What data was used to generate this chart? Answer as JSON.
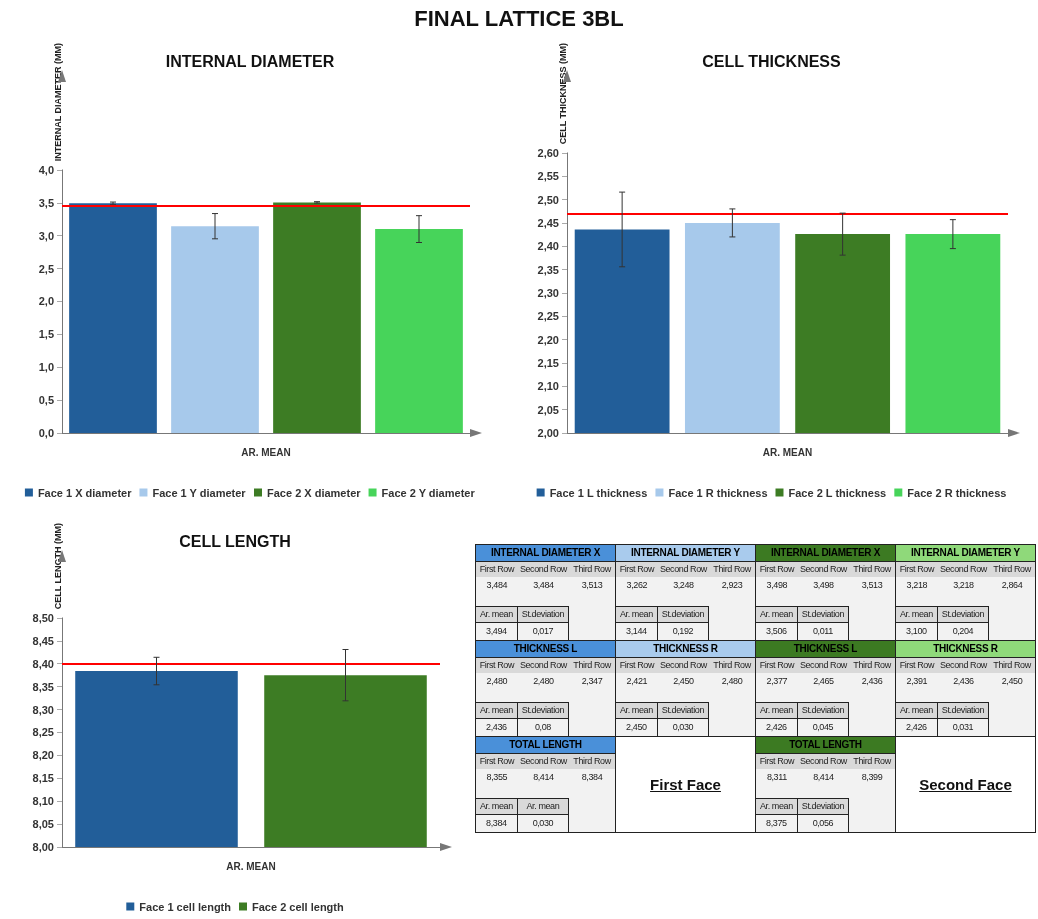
{
  "chart_data": [
    {
      "type": "bar",
      "title": "FINAL LATTICE 3BL",
      "subtitle": "INTERNAL DIAMETER",
      "ylabel": "INTERNAL DIAMETER (MM)",
      "xlabel": "AR. MEAN",
      "categories": [
        null
      ],
      "series": [
        {
          "name": "Face 1 X diameter",
          "color": "#225e99",
          "values": [
            3.494
          ],
          "errors": [
            0.017
          ]
        },
        {
          "name": "Face 1 Y diameter",
          "color": "#a7c9eb",
          "values": [
            3.144
          ],
          "errors": [
            0.192
          ]
        },
        {
          "name": "Face 2 X diameter",
          "color": "#3d7c24",
          "values": [
            3.506
          ],
          "errors": [
            0.011
          ]
        },
        {
          "name": "Face 2 Y diameter",
          "color": "#47d45a",
          "values": [
            3.1
          ],
          "errors": [
            0.204
          ]
        }
      ],
      "ylim": [
        0,
        4
      ],
      "yticks": [
        {
          "value": 0,
          "label": "0,0"
        },
        {
          "value": 0.5,
          "label": "0,5"
        },
        {
          "value": 1,
          "label": "1,0"
        },
        {
          "value": 1.5,
          "label": "1,5"
        },
        {
          "value": 2,
          "label": "2,0"
        },
        {
          "value": 2.5,
          "label": "2,5"
        },
        {
          "value": 3,
          "label": "3,0"
        },
        {
          "value": 3.5,
          "label": "3,5"
        },
        {
          "value": 4,
          "label": "4,0"
        }
      ],
      "ref_lines": [
        {
          "axis": "y",
          "value": 3.45,
          "color": "#ff0000"
        }
      ],
      "legend": "bottom"
    },
    {
      "type": "bar",
      "title": "CELL THICKNESS",
      "ylabel": "CELL THICKNESS (MM)",
      "xlabel": "AR. MEAN",
      "categories": [
        null
      ],
      "series": [
        {
          "name": "Face 1 L thickness",
          "color": "#225e99",
          "values": [
            2.436
          ],
          "errors": [
            0.08
          ]
        },
        {
          "name": "Face 1 R thickness",
          "color": "#a7c9eb",
          "values": [
            2.45
          ],
          "errors": [
            0.03
          ]
        },
        {
          "name": "Face 2 L thickness",
          "color": "#3d7c24",
          "values": [
            2.426
          ],
          "errors": [
            0.045
          ]
        },
        {
          "name": "Face 2 R thickness",
          "color": "#47d45a",
          "values": [
            2.426
          ],
          "errors": [
            0.031
          ]
        }
      ],
      "ylim": [
        2,
        2.6
      ],
      "yticks": [
        {
          "value": 2,
          "label": "2,00"
        },
        {
          "value": 2.05,
          "label": "2,05"
        },
        {
          "value": 2.1,
          "label": "2,10"
        },
        {
          "value": 2.15,
          "label": "2,15"
        },
        {
          "value": 2.2,
          "label": "2,20"
        },
        {
          "value": 2.25,
          "label": "2,25"
        },
        {
          "value": 2.3,
          "label": "2,30"
        },
        {
          "value": 2.35,
          "label": "2,35"
        },
        {
          "value": 2.4,
          "label": "2,40"
        },
        {
          "value": 2.45,
          "label": "2,45"
        },
        {
          "value": 2.5,
          "label": "2,50"
        },
        {
          "value": 2.55,
          "label": "2,55"
        },
        {
          "value": 2.6,
          "label": "2,60"
        }
      ],
      "ref_lines": [
        {
          "axis": "y",
          "value": 2.467,
          "color": "#ff0000"
        }
      ],
      "legend": "bottom"
    },
    {
      "type": "bar",
      "title": "CELL LENGTH",
      "ylabel": "CELL LENGTH (MM)",
      "xlabel": "AR. MEAN",
      "categories": [
        null
      ],
      "series": [
        {
          "name": "Face 1 cell length",
          "color": "#225e99",
          "values": [
            8.384
          ],
          "errors": [
            0.03
          ]
        },
        {
          "name": "Face 2 cell length",
          "color": "#3d7c24",
          "values": [
            8.375
          ],
          "errors": [
            0.056
          ]
        }
      ],
      "ylim": [
        8,
        8.5
      ],
      "yticks": [
        {
          "value": 8,
          "label": "8,00"
        },
        {
          "value": 8.05,
          "label": "8,05"
        },
        {
          "value": 8.1,
          "label": "8,10"
        },
        {
          "value": 8.15,
          "label": "8,15"
        },
        {
          "value": 8.2,
          "label": "8,20"
        },
        {
          "value": 8.25,
          "label": "8,25"
        },
        {
          "value": 8.3,
          "label": "8,30"
        },
        {
          "value": 8.35,
          "label": "8,35"
        },
        {
          "value": 8.4,
          "label": "8,40"
        },
        {
          "value": 8.45,
          "label": "8,45"
        },
        {
          "value": 8.5,
          "label": "8,50"
        }
      ],
      "ref_lines": [
        {
          "axis": "y",
          "value": 8.398,
          "color": "#ff0000"
        }
      ],
      "legend": "bottom"
    },
    {
      "type": "other",
      "colors": [
        "#4a90d9",
        "#a9cbed",
        "#3c7a22",
        "#8fd97a"
      ],
      "cell_labels": [
        [
          "INTERNAL DIAMETER X",
          null,
          null,
          "INTERNAL DIAMETER Y",
          null,
          null,
          "INTERNAL DIAMETER X",
          null,
          null,
          "INTERNAL DIAMETER Y",
          null,
          null
        ],
        [
          "First Row",
          "Second Row",
          "Third Row",
          "First Row",
          "Second Row",
          "Third Row",
          "First Row",
          "Second Row",
          "Third Row",
          "First Row",
          "Second Row",
          "Third Row"
        ],
        [
          "3,484",
          "3,484",
          "3,513",
          "3,262",
          "3,248",
          "2,923",
          "3,498",
          "3,498",
          "3,513",
          "3,218",
          "3,218",
          "2,864"
        ],
        [
          null,
          null,
          null,
          null,
          null,
          null,
          null,
          null,
          null,
          null,
          null,
          null
        ],
        [
          "Ar. mean",
          "St.deviation",
          null,
          "Ar. mean",
          "St.deviation",
          null,
          "Ar. mean",
          "St.deviation",
          null,
          "Ar. mean",
          "St.deviation",
          null
        ],
        [
          "3,494",
          "0,017",
          null,
          "3,144",
          "0,192",
          null,
          "3,506",
          "0,011",
          null,
          "3,100",
          "0,204",
          null
        ],
        [
          "THICKNESS L",
          null,
          null,
          "THICKNESS R",
          null,
          null,
          "THICKNESS L",
          null,
          null,
          "THICKNESS R",
          null,
          null
        ],
        [
          "First Row",
          "Second Row",
          "Third Row",
          "First Row",
          "Second Row",
          "Third Row",
          "First Row",
          "Second Row",
          "Third Row",
          "First Row",
          "Second Row",
          "Third Row"
        ],
        [
          "2,480",
          "2,480",
          "2,347",
          "2,421",
          "2,450",
          "2,480",
          "2,377",
          "2,465",
          "2,436",
          "2,391",
          "2,436",
          "2,450"
        ],
        [
          null,
          null,
          null,
          null,
          null,
          null,
          null,
          null,
          null,
          null,
          null,
          null
        ],
        [
          "Ar. mean",
          "St.deviation",
          null,
          "Ar. mean",
          "St.deviation",
          null,
          "Ar. mean",
          "St.deviation",
          null,
          "Ar. mean",
          "St.deviation",
          null
        ],
        [
          "2,436",
          "0,08",
          null,
          "2,450",
          "0,030",
          null,
          "2,426",
          "0,045",
          null,
          "2,426",
          "0,031",
          null
        ],
        [
          "TOTAL LENGTH",
          null,
          null,
          null,
          null,
          null,
          "TOTAL LENGTH",
          null,
          null,
          null,
          null,
          null
        ],
        [
          "First Row",
          "Second Row",
          "Third Row",
          null,
          null,
          null,
          "First Row",
          "Second Row",
          "Third Row",
          null,
          null,
          null
        ],
        [
          "8,355",
          "8,414",
          "8,384",
          null,
          null,
          null,
          "8,311",
          "8,414",
          "8,399",
          null,
          null,
          null
        ],
        [
          null,
          null,
          null,
          null,
          "First Face",
          null,
          null,
          null,
          null,
          null,
          "Second Face",
          null
        ],
        [
          "Ar. mean",
          "Ar. mean",
          null,
          null,
          null,
          null,
          "Ar. mean",
          "St.deviation",
          null,
          null,
          null,
          null
        ],
        [
          "8,384",
          "0,030",
          null,
          null,
          null,
          null,
          "8,375",
          "0,056",
          null,
          null,
          null,
          null
        ]
      ]
    }
  ]
}
